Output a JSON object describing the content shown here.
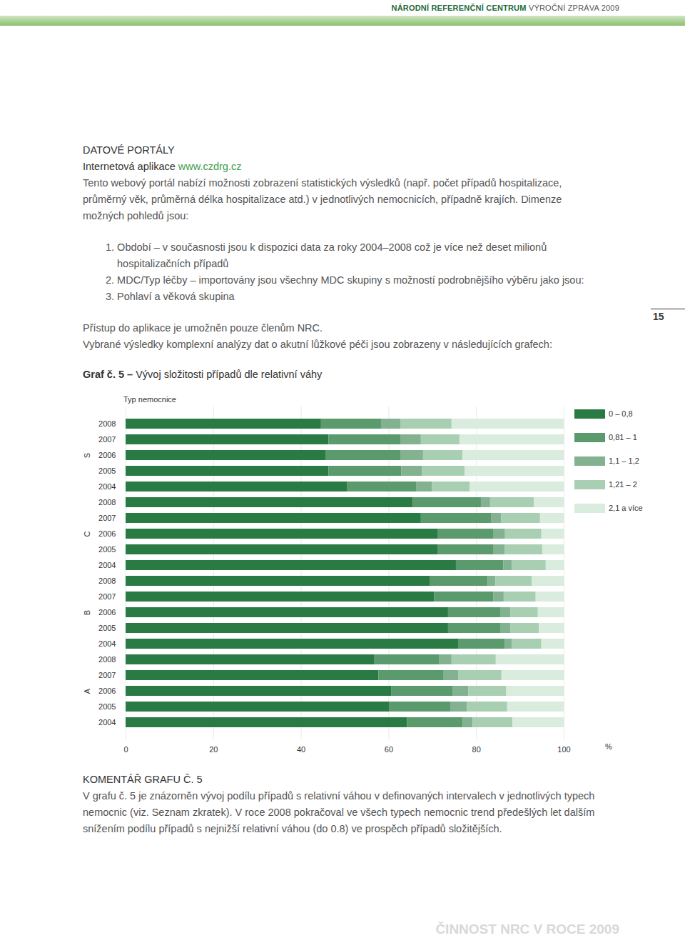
{
  "header": {
    "left": "NÁRODNÍ REFERENČNÍ CENTRUM",
    "right": "VÝROČNÍ ZPRÁVA 2009"
  },
  "heading": "DATOVÉ PORTÁLY",
  "subheading": {
    "text": "Internetová aplikace",
    "link": "www.czdrg.cz"
  },
  "paragraph": "Tento webový portál nabízí možnosti zobrazení statistických výsledků (např. počet případů hospitalizace, průměrný věk, průměrná délka hospitalizace atd.) v jednotlivých nemocnicích, případně krajích. Dimenze možných pohledů jsou:",
  "list": [
    "1. Období – v současnosti jsou k dispozici data za roky 2004–2008 což je více než deset milionů hospitalizačních případů",
    "2. MDC/Typ léčby – importovány jsou všechny MDC skupiny s možností podrobnějšího výběru jako jsou:",
    "3. Pohlaví a věková skupina"
  ],
  "paragraph2": [
    "Přístup do aplikace je umožněn pouze členům NRC.",
    "Vybrané výsledky komplexní analýzy dat o akutní lůžkové péči jsou zobrazeny v následujících grafech:"
  ],
  "page_number": "15",
  "chart_data": {
    "type": "bar",
    "orientation": "horizontal",
    "stacked": true,
    "title": "Graf č. 5 – Vývoj složitosti případů dle relativní váhy",
    "ylabel": "Typ nemocnice",
    "xlabel": "%",
    "categories": [
      "2008",
      "2007",
      "2006",
      "2005",
      "2004",
      "2008",
      "2007",
      "2006",
      "2005",
      "2004",
      "2008",
      "2007",
      "2006",
      "2005",
      "2004",
      "2008",
      "2007",
      "2006",
      "2005",
      "2004"
    ],
    "category_groups": [
      "S",
      "S",
      "S",
      "S",
      "S",
      "C",
      "C",
      "C",
      "C",
      "C",
      "B",
      "B",
      "B",
      "B",
      "B",
      "A",
      "A",
      "A",
      "A",
      "A"
    ],
    "series": [
      {
        "name": "0 – 0,8",
        "color": "#2a7a43",
        "values": [
          44.6,
          46.3,
          45.6,
          46.3,
          50.5,
          65.5,
          67.4,
          71.3,
          71.3,
          75.4,
          69.5,
          70.4,
          73.6,
          73.6,
          75.9,
          56.8,
          57.7,
          60.6,
          60.1,
          64.2
        ]
      },
      {
        "name": "0,81 – 1",
        "color": "#5a9a6c",
        "values": [
          13.7,
          16.4,
          17.1,
          16.6,
          15.9,
          15.6,
          16.0,
          12.7,
          12.7,
          10.8,
          13.1,
          13.5,
          11.9,
          11.9,
          10.6,
          14.7,
          14.9,
          14.0,
          14.0,
          12.7
        ]
      },
      {
        "name": "1,1 – 1,2",
        "color": "#82b28f",
        "values": [
          4.4,
          4.7,
          5.2,
          4.7,
          3.5,
          2.1,
          2.3,
          2.6,
          2.5,
          1.9,
          1.8,
          2.4,
          2.3,
          2.3,
          1.6,
          2.9,
          3.3,
          3.6,
          3.8,
          2.3
        ]
      },
      {
        "name": "1,21 – 2",
        "color": "#a9cfb2",
        "values": [
          11.7,
          8.8,
          9.0,
          9.8,
          8.6,
          10.0,
          8.9,
          8.3,
          8.6,
          7.8,
          8.3,
          7.3,
          6.3,
          6.5,
          6.8,
          10.1,
          9.9,
          8.7,
          9.2,
          9.1
        ]
      },
      {
        "name": "2,1 a více",
        "color": "#d9ecdd",
        "values": [
          25.6,
          23.8,
          23.1,
          22.6,
          21.5,
          6.8,
          5.4,
          5.1,
          4.9,
          4.1,
          7.3,
          6.4,
          5.9,
          5.7,
          5.1,
          15.5,
          14.2,
          13.1,
          12.9,
          11.7
        ]
      }
    ],
    "xlim": [
      0,
      100
    ],
    "xticks": [
      0,
      20,
      40,
      60,
      80,
      100
    ],
    "grid": true,
    "legend": "right"
  },
  "comment_heading": "KOMENTÁŘ GRAFU Č. 5",
  "comment": "V grafu č. 5 je znázorněn vývoj podílu případů s relativní váhou v definovaných intervalech v jednotlivých typech nemocnic (viz. Seznam zkratek). V roce 2008 pokračoval ve všech typech nemocnic trend předešlých let dalším snížením podílu případů s nejnižší relativní váhou (do 0.8) ve prospěch případů složitějších.",
  "footer": "ČINNOST NRC V ROCE 2009"
}
